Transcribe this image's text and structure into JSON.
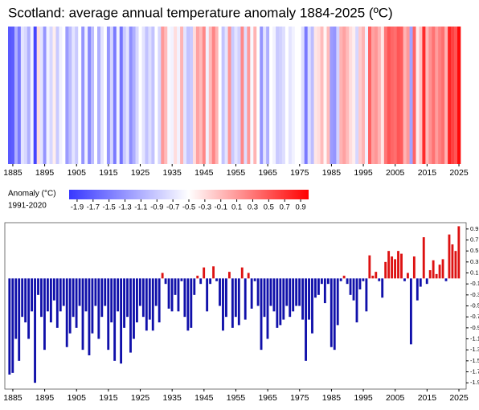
{
  "chart_data": {
    "type": "stripes",
    "title": "Scotland: average annual temperature anomaly 1884-2025 (ºC)",
    "x": [
      1884,
      1885,
      1886,
      1887,
      1888,
      1889,
      1890,
      1891,
      1892,
      1893,
      1894,
      1895,
      1896,
      1897,
      1898,
      1899,
      1900,
      1901,
      1902,
      1903,
      1904,
      1905,
      1906,
      1907,
      1908,
      1909,
      1910,
      1911,
      1912,
      1913,
      1914,
      1915,
      1916,
      1917,
      1918,
      1919,
      1920,
      1921,
      1922,
      1923,
      1924,
      1925,
      1926,
      1927,
      1928,
      1929,
      1930,
      1931,
      1932,
      1933,
      1934,
      1935,
      1936,
      1937,
      1938,
      1939,
      1940,
      1941,
      1942,
      1943,
      1944,
      1945,
      1946,
      1947,
      1948,
      1949,
      1950,
      1951,
      1952,
      1953,
      1954,
      1955,
      1956,
      1957,
      1958,
      1959,
      1960,
      1961,
      1962,
      1963,
      1964,
      1965,
      1966,
      1967,
      1968,
      1969,
      1970,
      1971,
      1972,
      1973,
      1974,
      1975,
      1976,
      1977,
      1978,
      1979,
      1980,
      1981,
      1982,
      1983,
      1984,
      1985,
      1986,
      1987,
      1988,
      1989,
      1990,
      1991,
      1992,
      1993,
      1994,
      1995,
      1996,
      1997,
      1998,
      1999,
      2000,
      2001,
      2002,
      2003,
      2004,
      2005,
      2006,
      2007,
      2008,
      2009,
      2010,
      2011,
      2012,
      2013,
      2014,
      2015,
      2016,
      2017,
      2018,
      2019,
      2020,
      2021,
      2022,
      2023,
      2024,
      2025
    ],
    "values": [
      -1.75,
      -1.72,
      -1.1,
      -1.5,
      -0.7,
      -0.8,
      -1.1,
      -0.6,
      -1.9,
      -0.3,
      -0.7,
      -1.3,
      -0.6,
      -0.8,
      -0.4,
      -0.9,
      -0.6,
      -0.5,
      -1.25,
      -1.0,
      -0.7,
      -0.9,
      -0.5,
      -1.3,
      -0.6,
      -1.4,
      -1.0,
      -0.5,
      -1.1,
      -0.7,
      -0.5,
      -1.3,
      -0.8,
      -1.5,
      -0.6,
      -1.55,
      -0.9,
      -0.7,
      -1.35,
      -1.1,
      -0.8,
      -0.5,
      -0.7,
      -0.95,
      -0.75,
      -0.95,
      -0.5,
      -0.8,
      0.1,
      -0.1,
      -0.55,
      -0.6,
      -0.3,
      -0.6,
      -0.05,
      -0.7,
      -0.95,
      -0.9,
      -0.3,
      0.05,
      -0.1,
      0.2,
      -0.6,
      -0.1,
      0.22,
      -0.05,
      -0.5,
      -0.95,
      -0.7,
      0.12,
      -0.9,
      -0.7,
      -0.85,
      0.2,
      -0.75,
      0.1,
      -0.55,
      -0.05,
      -0.5,
      -1.3,
      -0.7,
      -1.1,
      -0.5,
      -0.6,
      -0.9,
      -0.85,
      -0.75,
      -0.5,
      -0.7,
      -0.6,
      -0.5,
      -0.5,
      -0.75,
      -1.5,
      -0.75,
      -1.0,
      -0.35,
      -0.3,
      -0.1,
      -0.45,
      -0.1,
      -1.25,
      -1.3,
      -0.85,
      -0.05,
      0.05,
      -0.1,
      -0.3,
      -0.4,
      -0.8,
      -0.2,
      -0.05,
      -0.6,
      0.42,
      0.05,
      0.12,
      -0.05,
      -0.35,
      0.3,
      0.5,
      0.4,
      0.35,
      0.5,
      0.45,
      -0.05,
      0.1,
      -1.2,
      0.4,
      -0.4,
      -0.15,
      0.75,
      -0.1,
      0.15,
      0.33,
      0.08,
      0.25,
      0.35,
      -0.05,
      0.8,
      0.62,
      0.5,
      0.95
    ],
    "xlim": [
      1884,
      2025
    ],
    "xticks": [
      1885,
      1895,
      1905,
      1915,
      1925,
      1935,
      1945,
      1955,
      1965,
      1975,
      1985,
      1995,
      2005,
      2015,
      2025
    ],
    "colormap": [
      "#3838ff",
      "#ffffff",
      "#ff0000"
    ],
    "clim": [
      -2,
      1
    ],
    "colorbar_label": "Anomaly (°C)",
    "colorbar_sublabel": "1991-2020",
    "colorbar_ticks": [
      -1.9,
      -1.7,
      -1.5,
      -1.3,
      -1.1,
      -0.9,
      -0.7,
      -0.5,
      -0.3,
      -0.1,
      0.1,
      0.3,
      0.5,
      0.7,
      0.9
    ],
    "bar_colors": {
      "positive": "#dd1111",
      "negative": "#1010aa"
    },
    "ylim": [
      -2,
      1
    ],
    "yticks": [
      0.9,
      0.7,
      0.5,
      0.3,
      0.1,
      -0.1,
      -0.3,
      -0.5,
      -0.7,
      -0.9,
      -1.1,
      -1.3,
      -1.5,
      -1.7,
      -1.9
    ]
  }
}
